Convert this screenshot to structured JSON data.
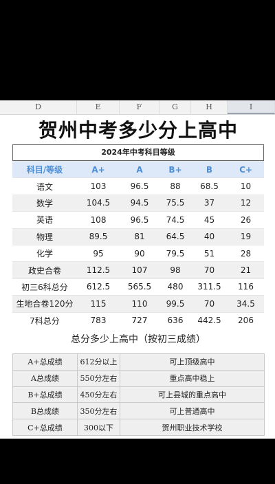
{
  "columns": [
    "D",
    "E",
    "F",
    "G",
    "H",
    "I"
  ],
  "title": "贺州中考多少分上高中",
  "grade_table": {
    "caption": "2024年中考科目等级",
    "headers": [
      "科目/等级",
      "A+",
      "A",
      "B+",
      "B",
      "C+"
    ],
    "rows": [
      {
        "subject": "语文",
        "values": [
          "103",
          "96.5",
          "88",
          "68.5",
          "10"
        ]
      },
      {
        "subject": "数学",
        "values": [
          "104.5",
          "94.5",
          "75.5",
          "37",
          "12"
        ]
      },
      {
        "subject": "英语",
        "values": [
          "108",
          "96.5",
          "74.5",
          "45",
          "26"
        ]
      },
      {
        "subject": "物理",
        "values": [
          "89.5",
          "81",
          "64.5",
          "40",
          "19"
        ]
      },
      {
        "subject": "化学",
        "values": [
          "95",
          "90",
          "79.5",
          "51",
          "28"
        ]
      },
      {
        "subject": "政史合卷",
        "values": [
          "112.5",
          "107",
          "98",
          "70",
          "21"
        ]
      },
      {
        "subject": "初三6科总分",
        "values": [
          "612.5",
          "565.5",
          "480",
          "311.5",
          "116"
        ]
      },
      {
        "subject": "生地合卷120分",
        "values": [
          "115",
          "110",
          "99.5",
          "70",
          "34.5"
        ]
      },
      {
        "subject": "7科总分",
        "values": [
          "783",
          "727",
          "636",
          "442.5",
          "206"
        ]
      }
    ]
  },
  "section_title": "总分多少上高中（按初三成绩）",
  "rank_table": [
    {
      "grade": "A+总成绩",
      "score": "612分以上",
      "outcome": "可上顶级高中"
    },
    {
      "grade": "A总成绩",
      "score": "550分左右",
      "outcome": "重点高中稳上"
    },
    {
      "grade": "B+总成绩",
      "score": "450分左右",
      "outcome": "可上县城的重点高中"
    },
    {
      "grade": "B总成绩",
      "score": "350分左右",
      "outcome": "可上普通高中"
    },
    {
      "grade": "C+总成绩",
      "score": "300以下",
      "outcome": "贺州职业技术学校"
    }
  ]
}
